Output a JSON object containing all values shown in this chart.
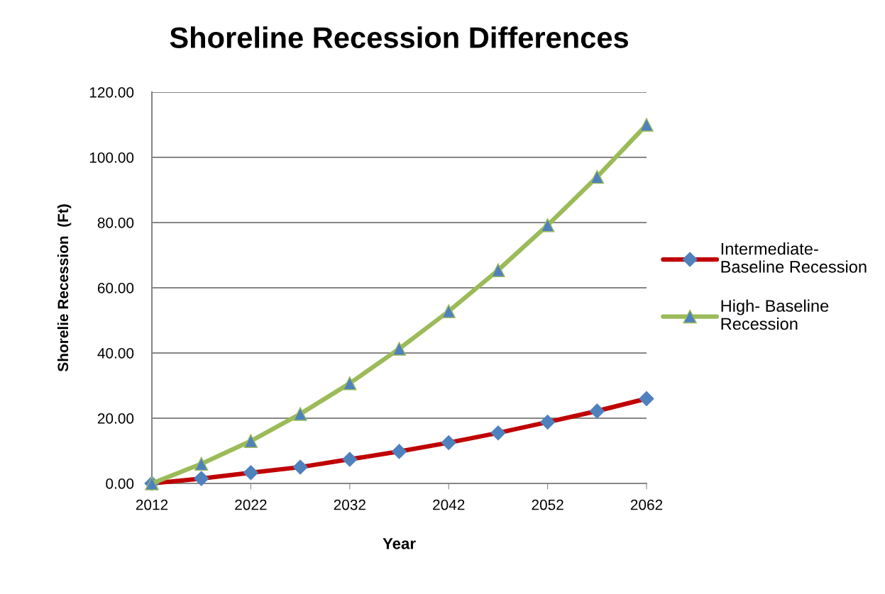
{
  "chart_data": {
    "type": "line",
    "title": "Shoreline Recession Differences",
    "xlabel": "Year",
    "ylabel": "Shorelie Recession  (Ft)",
    "x": [
      2012,
      2017,
      2022,
      2027,
      2032,
      2037,
      2042,
      2047,
      2052,
      2057,
      2062
    ],
    "series": [
      {
        "name": "Intermediate-\nBaseline Recession",
        "color": "#c00000",
        "marker": "diamond",
        "values": [
          0,
          1.5,
          3.3,
          5.0,
          7.4,
          9.8,
          12.5,
          15.5,
          18.8,
          22.2,
          26.0
        ]
      },
      {
        "name": "High- Baseline\nRecession",
        "color": "#9bbb59",
        "marker": "triangle",
        "values": [
          0,
          6.0,
          13.0,
          21.3,
          30.7,
          41.3,
          52.8,
          65.4,
          79.2,
          94.0,
          110.0
        ]
      }
    ],
    "xlim": [
      2012,
      2062
    ],
    "xticks": [
      2012,
      2022,
      2032,
      2042,
      2052,
      2062
    ],
    "ylim": [
      0,
      120
    ],
    "yticks": [
      {
        "value": 0,
        "label": "0.00"
      },
      {
        "value": 20,
        "label": "20.00"
      },
      {
        "value": 40,
        "label": "40.00"
      },
      {
        "value": 60,
        "label": "60.00"
      },
      {
        "value": 80,
        "label": "80.00"
      },
      {
        "value": 100,
        "label": "100.00"
      },
      {
        "value": 120,
        "label": "120.00"
      }
    ],
    "grid": "y",
    "legend": "right"
  }
}
